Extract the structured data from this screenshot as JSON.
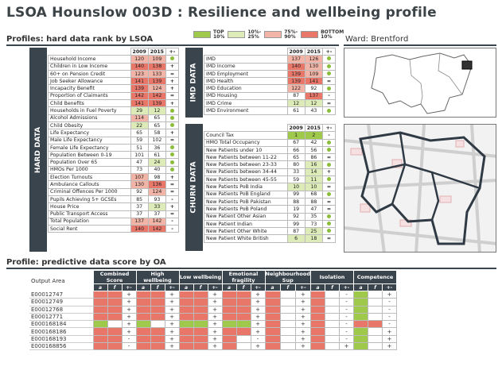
{
  "title": "LSOA Hounslow 003D : Resilience and wellbeing profile",
  "sections": {
    "profiles": "Profiles: hard data rank by LSOA",
    "predictive": "Profile: predictive data score by OA"
  },
  "legend": [
    {
      "label": "TOP\n10%",
      "color": "#9ec94a"
    },
    {
      "label": "10%-\n25%",
      "color": "#dcebb8"
    },
    {
      "label": "75%-\n90%",
      "color": "#f2b4a6"
    },
    {
      "label": "BOTTOM\n10%",
      "color": "#e8776a"
    }
  ],
  "ward": "Ward: Brentford",
  "hard_data": {
    "tab": "HARD DATA",
    "headers": [
      "2009",
      "2015",
      "+-"
    ],
    "rows": [
      {
        "label": "Household Income",
        "y2009": "120",
        "y2015": "109",
        "trend": "dot",
        "c2009": "low",
        "c2015": "low"
      },
      {
        "label": "Children in Low Income",
        "y2009": "140",
        "y2015": "138",
        "trend": "+",
        "c2009": "bot",
        "c2015": "bot"
      },
      {
        "label": "60+ on Pension Credit",
        "y2009": "123",
        "y2015": "133",
        "trend": "=",
        "c2009": "low",
        "c2015": "low"
      },
      {
        "label": "Job Seeker Allowance",
        "y2009": "141",
        "y2015": "139",
        "trend": "+",
        "c2009": "bot",
        "c2015": "bot"
      },
      {
        "label": "Incapacity Benefit",
        "y2009": "139",
        "y2015": "124",
        "trend": "+",
        "c2009": "bot",
        "c2015": "low"
      },
      {
        "label": "Proportion of Claimants",
        "y2009": "142",
        "y2015": "142",
        "trend": "=",
        "c2009": "bot",
        "c2015": "bot"
      },
      {
        "label": "Child Benefits",
        "y2009": "141",
        "y2015": "139",
        "trend": "+",
        "c2009": "bot",
        "c2015": "bot"
      },
      {
        "label": "Households in Fuel Poverty",
        "y2009": "29",
        "y2015": "12",
        "trend": "dot",
        "c2009": "mid",
        "c2015": "mid"
      },
      {
        "label": "Alcohol Admissions",
        "y2009": "114",
        "y2015": "65",
        "trend": "dot",
        "c2009": "low",
        "c2015": "none"
      },
      {
        "label": "Child Obesity",
        "y2009": "22",
        "y2015": "65",
        "trend": "dot",
        "c2009": "mid",
        "c2015": "none"
      },
      {
        "label": "Life Expectancy",
        "y2009": "65",
        "y2015": "58",
        "trend": "+",
        "c2009": "none",
        "c2015": "none"
      },
      {
        "label": "Male Life Expectancy",
        "y2009": "59",
        "y2015": "102",
        "trend": "=",
        "c2009": "none",
        "c2015": "none"
      },
      {
        "label": "Female Life Expectancy",
        "y2009": "51",
        "y2015": "36",
        "trend": "dot",
        "c2009": "none",
        "c2015": "none"
      },
      {
        "label": "Population Between 0-19",
        "y2009": "101",
        "y2015": "61",
        "trend": "dot",
        "c2009": "none",
        "c2015": "none"
      },
      {
        "label": "Population Over 65",
        "y2009": "47",
        "y2015": "24",
        "trend": "dot",
        "c2009": "none",
        "c2015": "mid"
      },
      {
        "label": "HMOs Per 1000",
        "y2009": "73",
        "y2015": "40",
        "trend": "dot",
        "c2009": "none",
        "c2015": "none"
      },
      {
        "label": "Election Turnouts",
        "y2009": "107",
        "y2015": "98",
        "trend": "+",
        "c2009": "low",
        "c2015": "none"
      },
      {
        "label": "Ambulance Callouts",
        "y2009": "130",
        "y2015": "136",
        "trend": "=",
        "c2009": "low",
        "c2015": "bot"
      },
      {
        "label": "Criminal Offences Per 1000",
        "y2009": "92",
        "y2015": "124",
        "trend": "=",
        "c2009": "none",
        "c2015": "low"
      },
      {
        "label": "Pupils Achieving 5+ GCSEs",
        "y2009": "85",
        "y2015": "93",
        "trend": "-",
        "c2009": "none",
        "c2015": "none"
      },
      {
        "label": "House Price",
        "y2009": "37",
        "y2015": "33",
        "trend": "+",
        "c2009": "none",
        "c2015": "mid"
      },
      {
        "label": "Public Transport Access",
        "y2009": "37",
        "y2015": "37",
        "trend": "=",
        "c2009": "none",
        "c2015": "none"
      },
      {
        "label": "Total Population",
        "y2009": "137",
        "y2015": "142",
        "trend": "-",
        "c2009": "low",
        "c2015": "low"
      },
      {
        "label": "Social Rent",
        "y2009": "140",
        "y2015": "142",
        "trend": "-",
        "c2009": "bot",
        "c2015": "bot"
      }
    ]
  },
  "imd_data": {
    "tab": "IMD DATA",
    "headers": [
      "2009",
      "2015",
      "+-"
    ],
    "rows": [
      {
        "label": "IMD",
        "y2009": "137",
        "y2015": "126",
        "trend": "dot",
        "c2009": "low",
        "c2015": "low"
      },
      {
        "label": "IMD Income",
        "y2009": "140",
        "y2015": "130",
        "trend": "dot",
        "c2009": "bot",
        "c2015": "low"
      },
      {
        "label": "IMD Employment",
        "y2009": "139",
        "y2015": "109",
        "trend": "dot",
        "c2009": "bot",
        "c2015": "low"
      },
      {
        "label": "IMD Health",
        "y2009": "139",
        "y2015": "141",
        "trend": "=",
        "c2009": "bot",
        "c2015": "bot"
      },
      {
        "label": "IMD Education",
        "y2009": "122",
        "y2015": "92",
        "trend": "dot",
        "c2009": "low",
        "c2015": "none"
      },
      {
        "label": "IMD Housing",
        "y2009": "87",
        "y2015": "137",
        "trend": "-",
        "c2009": "none",
        "c2015": "bot"
      },
      {
        "label": "IMD Crime",
        "y2009": "12",
        "y2015": "12",
        "trend": "=",
        "c2009": "mid",
        "c2015": "mid"
      },
      {
        "label": "IMD Environment",
        "y2009": "61",
        "y2015": "43",
        "trend": "dot",
        "c2009": "none",
        "c2015": "none"
      }
    ]
  },
  "churn_data": {
    "tab": "CHURN DATA",
    "headers": [
      "2009",
      "2015",
      "+-"
    ],
    "rows": [
      {
        "label": "Council Tax",
        "y2009": "1",
        "y2015": "2",
        "trend": "-",
        "c2009": "top",
        "c2015": "top"
      },
      {
        "label": "HMO Total Occupancy",
        "y2009": "67",
        "y2015": "42",
        "trend": "dot",
        "c2009": "none",
        "c2015": "none"
      },
      {
        "label": "New Patients under 10",
        "y2009": "66",
        "y2015": "56",
        "trend": "dot",
        "c2009": "none",
        "c2015": "none"
      },
      {
        "label": "New Patients between 11-22",
        "y2009": "65",
        "y2015": "86",
        "trend": "=",
        "c2009": "none",
        "c2015": "none"
      },
      {
        "label": "New Patients between 23-33",
        "y2009": "80",
        "y2015": "16",
        "trend": "dot",
        "c2009": "none",
        "c2015": "mid"
      },
      {
        "label": "New Patients between 34-44",
        "y2009": "33",
        "y2015": "14",
        "trend": "+",
        "c2009": "none",
        "c2015": "mid"
      },
      {
        "label": "New Patients between 45-55",
        "y2009": "59",
        "y2015": "11",
        "trend": "dot",
        "c2009": "none",
        "c2015": "mid"
      },
      {
        "label": "New Patients PoB India",
        "y2009": "10",
        "y2015": "10",
        "trend": "=",
        "c2009": "mid",
        "c2015": "mid"
      },
      {
        "label": "New Patients PoB England",
        "y2009": "99",
        "y2015": "68",
        "trend": "dot",
        "c2009": "none",
        "c2015": "none"
      },
      {
        "label": "New Patients PoB Pakistan",
        "y2009": "88",
        "y2015": "88",
        "trend": "=",
        "c2009": "none",
        "c2015": "none"
      },
      {
        "label": "New Patients PoB Poland",
        "y2009": "19",
        "y2015": "47",
        "trend": "=",
        "c2009": "none",
        "c2015": "none"
      },
      {
        "label": "New Patient Other Asian",
        "y2009": "92",
        "y2015": "35",
        "trend": "dot",
        "c2009": "none",
        "c2015": "none"
      },
      {
        "label": "New Patient Indian",
        "y2009": "99",
        "y2015": "73",
        "trend": "dot",
        "c2009": "none",
        "c2015": "none"
      },
      {
        "label": "New Patient Other White",
        "y2009": "87",
        "y2015": "25",
        "trend": "dot",
        "c2009": "none",
        "c2015": "mid"
      },
      {
        "label": "New Patient White British",
        "y2009": "6",
        "y2015": "18",
        "trend": "=",
        "c2009": "mid",
        "c2015": "mid"
      }
    ]
  },
  "oa": {
    "area_header": "Output Area",
    "groups": [
      "Combined Score",
      "High wellbeing",
      "Low wellbeing",
      "Emotional fragility",
      "Neighbourhood Sup",
      "Isolation",
      "Competence"
    ],
    "sub": [
      "a",
      "f",
      "+-"
    ],
    "rows": [
      {
        "area": "E00012747",
        "cells": [
          [
            "bot",
            "bot",
            "+"
          ],
          [
            "bot",
            "bot",
            "+"
          ],
          [
            "bot",
            "bot",
            "+"
          ],
          [
            "bot",
            "bot",
            "+"
          ],
          [
            "bot",
            "none",
            "+"
          ],
          [
            "bot",
            "none",
            "-"
          ],
          [
            "top",
            "none",
            "+"
          ]
        ]
      },
      {
        "area": "E00012749",
        "cells": [
          [
            "bot",
            "bot",
            "+"
          ],
          [
            "bot",
            "bot",
            "+"
          ],
          [
            "bot",
            "bot",
            "+"
          ],
          [
            "bot",
            "bot",
            "+"
          ],
          [
            "bot",
            "none",
            "+"
          ],
          [
            "bot",
            "none",
            "-"
          ],
          [
            "top",
            "none",
            "-"
          ]
        ]
      },
      {
        "area": "E00012768",
        "cells": [
          [
            "bot",
            "bot",
            "+"
          ],
          [
            "bot",
            "bot",
            "+"
          ],
          [
            "bot",
            "bot",
            "+"
          ],
          [
            "bot",
            "bot",
            "+"
          ],
          [
            "bot",
            "none",
            "+"
          ],
          [
            "bot",
            "none",
            "-"
          ],
          [
            "top",
            "none",
            "-"
          ]
        ]
      },
      {
        "area": "E00012771",
        "cells": [
          [
            "bot",
            "bot",
            "+"
          ],
          [
            "bot",
            "bot",
            "+"
          ],
          [
            "bot",
            "bot",
            "+"
          ],
          [
            "bot",
            "bot",
            "+"
          ],
          [
            "bot",
            "none",
            "+"
          ],
          [
            "bot",
            "none",
            "-"
          ],
          [
            "top",
            "none",
            "-"
          ]
        ]
      },
      {
        "area": "E000168184",
        "cells": [
          [
            "top",
            "none",
            "+"
          ],
          [
            "top",
            "none",
            "+"
          ],
          [
            "top",
            "top",
            "+"
          ],
          [
            "top",
            "top",
            "+"
          ],
          [
            "bot",
            "none",
            "+"
          ],
          [
            "bot",
            "none",
            "-"
          ],
          [
            "bot",
            "bot",
            "-"
          ]
        ]
      },
      {
        "area": "E000168186",
        "cells": [
          [
            "bot",
            "bot",
            "+"
          ],
          [
            "bot",
            "bot",
            "+"
          ],
          [
            "bot",
            "bot",
            "+"
          ],
          [
            "bot",
            "bot",
            "+"
          ],
          [
            "bot",
            "none",
            "+"
          ],
          [
            "bot",
            "none",
            "-"
          ],
          [
            "top",
            "none",
            "+"
          ]
        ]
      },
      {
        "area": "E000168193",
        "cells": [
          [
            "bot",
            "bot",
            "-"
          ],
          [
            "bot",
            "bot",
            "+"
          ],
          [
            "bot",
            "bot",
            "+"
          ],
          [
            "bot",
            "none",
            "-"
          ],
          [
            "bot",
            "none",
            "+"
          ],
          [
            "bot",
            "none",
            "-"
          ],
          [
            "top",
            "none",
            "+"
          ]
        ]
      },
      {
        "area": "E000168856",
        "cells": [
          [
            "bot",
            "bot",
            "-"
          ],
          [
            "bot",
            "bot",
            "+"
          ],
          [
            "bot",
            "bot",
            "+"
          ],
          [
            "bot",
            "none",
            "+"
          ],
          [
            "bot",
            "none",
            "+"
          ],
          [
            "bot",
            "none",
            "+"
          ],
          [
            "top",
            "none",
            "+"
          ]
        ]
      }
    ]
  }
}
